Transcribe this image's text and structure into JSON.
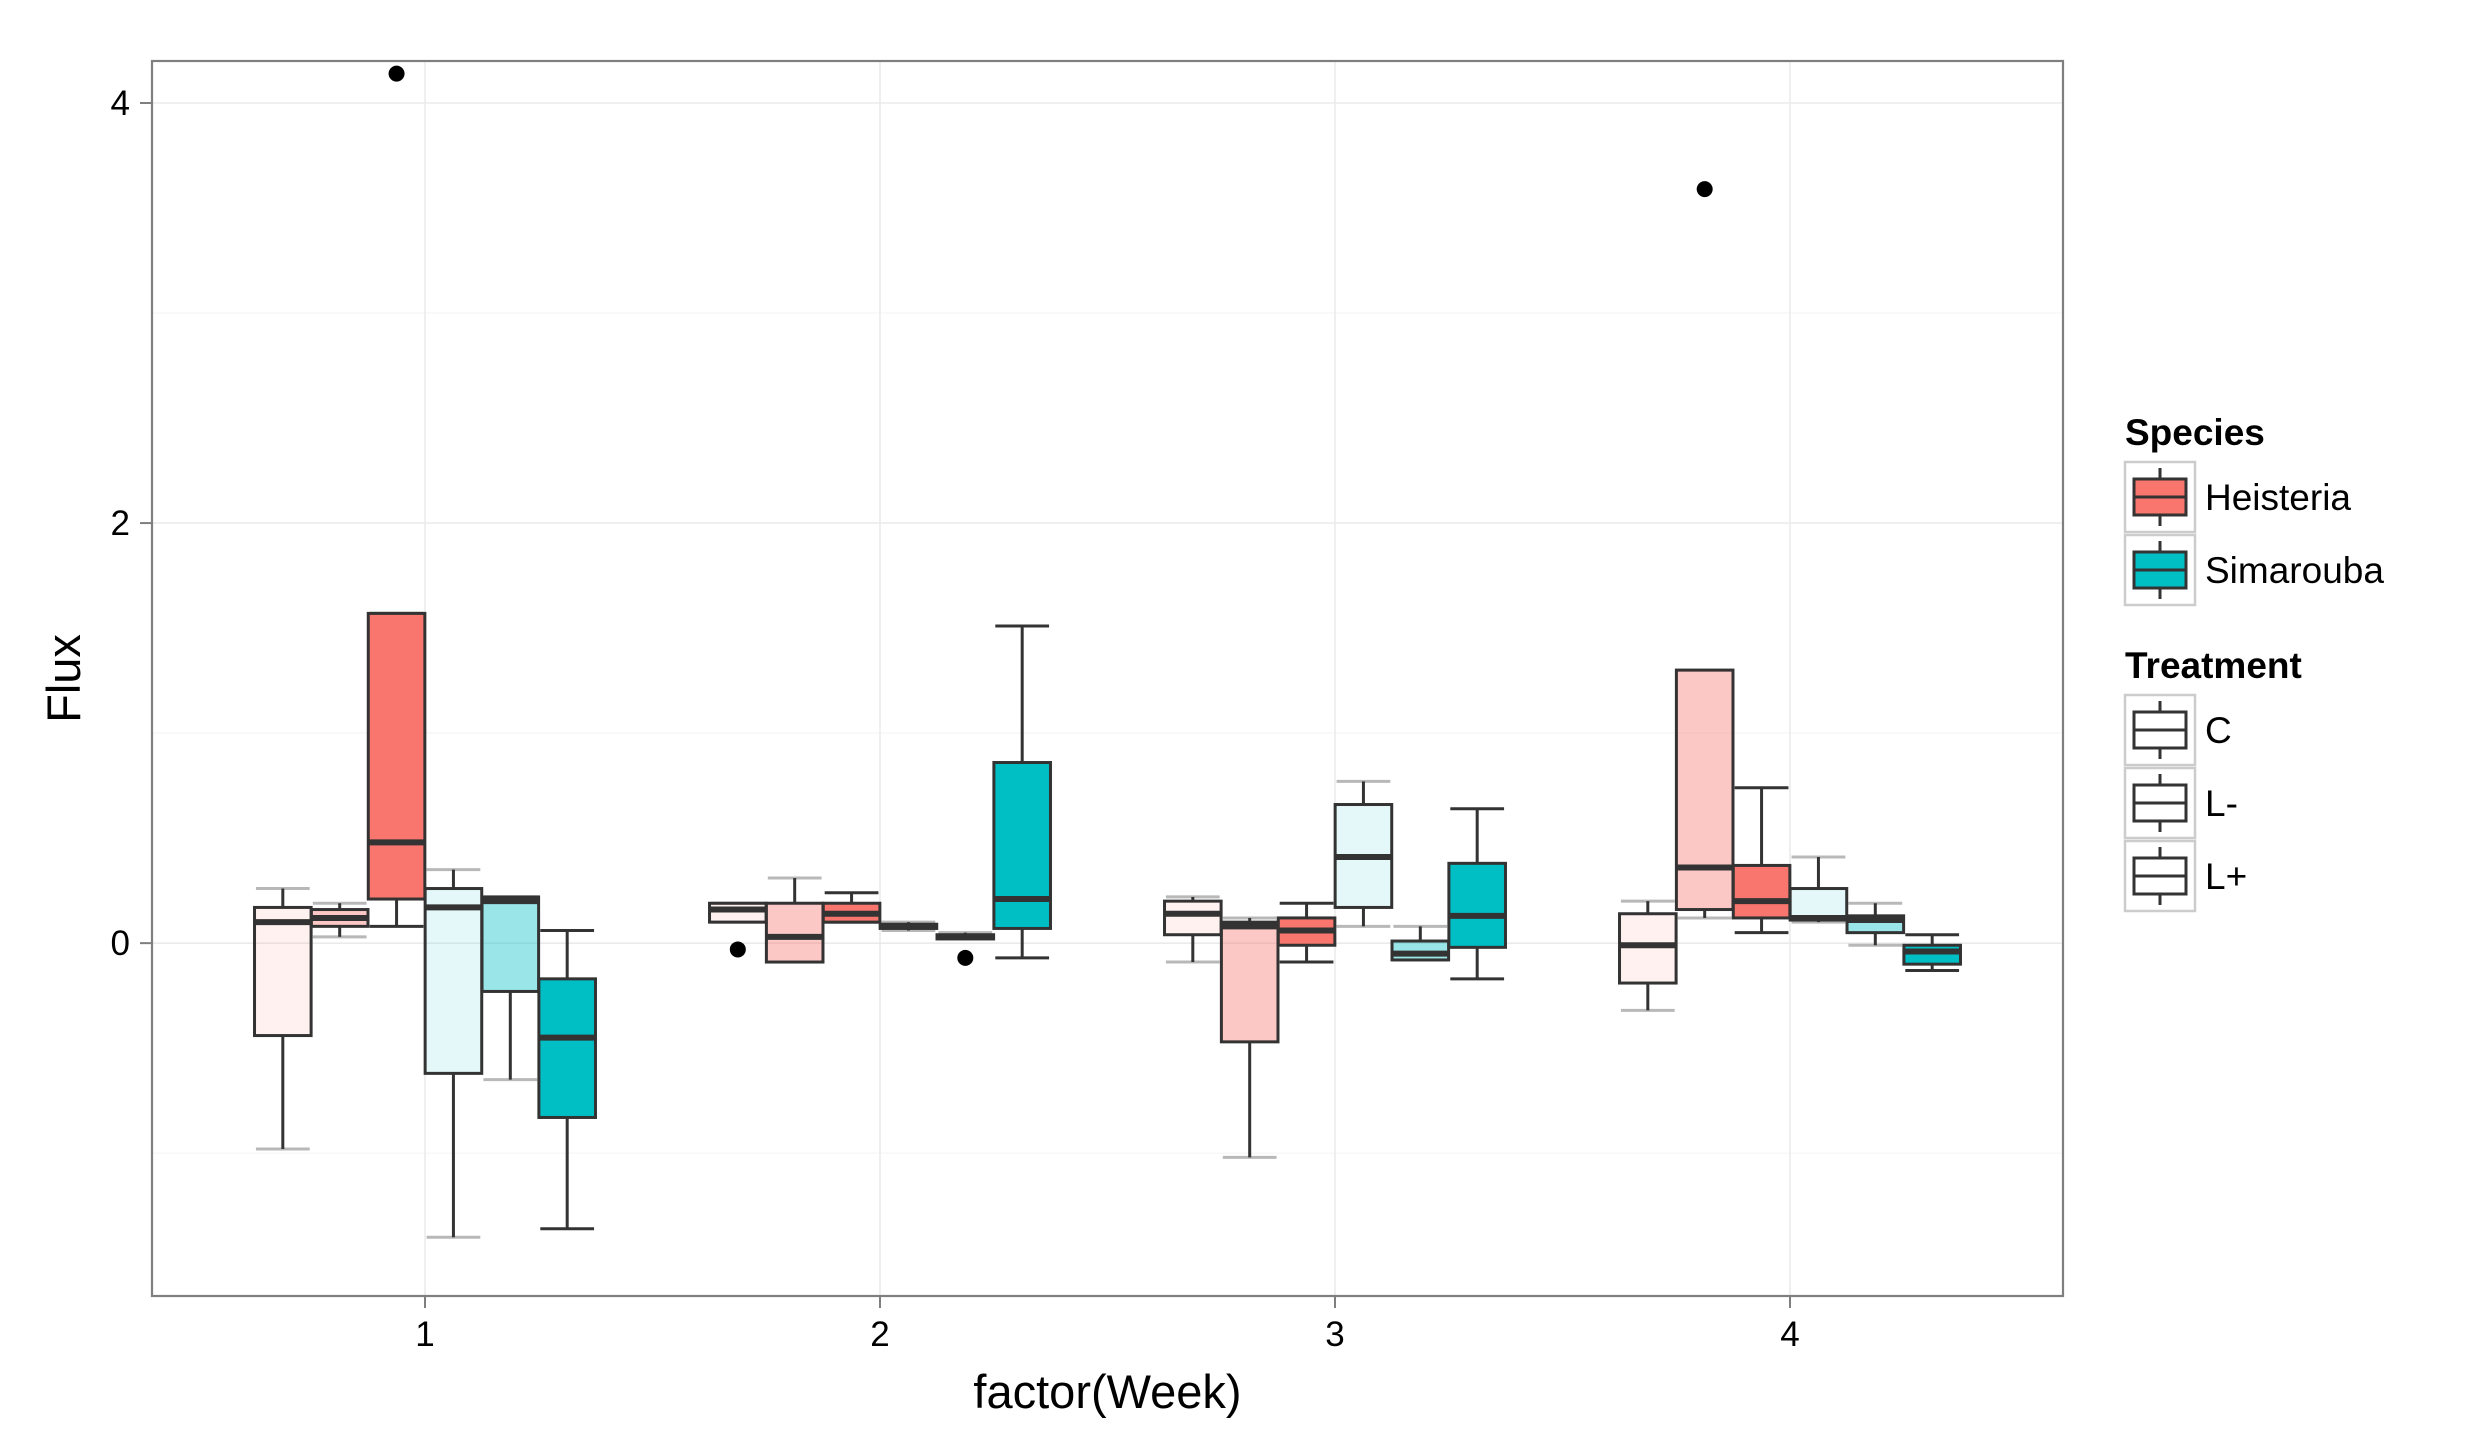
{
  "chart_data": {
    "type": "boxplot",
    "xlabel": "factor(Week)",
    "ylabel": "Flux",
    "categories": [
      "1",
      "2",
      "3",
      "4"
    ],
    "ylim": [
      -1.68,
      4.2
    ],
    "yticks": [
      0,
      2,
      4
    ],
    "grid": true,
    "legend_position": "right",
    "legends": [
      {
        "title": "Species",
        "entries": [
          {
            "label": "Heisteria",
            "color": "#F8766D"
          },
          {
            "label": "Simarouba",
            "color": "#00BFC4"
          }
        ]
      },
      {
        "title": "Treatment",
        "entries": [
          {
            "label": "C",
            "alpha": 0.1
          },
          {
            "label": "L-",
            "alpha": 0.4
          },
          {
            "label": "L+",
            "alpha": 1.0
          }
        ]
      }
    ],
    "boxes": [
      {
        "week": "1",
        "species": "Heisteria",
        "treatment": "C",
        "whisker_low": -0.98,
        "q1": -0.44,
        "median": 0.1,
        "q3": 0.17,
        "whisker_high": 0.26,
        "outliers": []
      },
      {
        "week": "1",
        "species": "Heisteria",
        "treatment": "L-",
        "whisker_low": 0.03,
        "q1": 0.08,
        "median": 0.12,
        "q3": 0.16,
        "whisker_high": 0.19,
        "outliers": []
      },
      {
        "week": "1",
        "species": "Heisteria",
        "treatment": "L+",
        "whisker_low": 0.08,
        "q1": 0.21,
        "median": 0.48,
        "q3": 1.57,
        "whisker_high": 1.57,
        "outliers": [
          4.14
        ]
      },
      {
        "week": "1",
        "species": "Simarouba",
        "treatment": "C",
        "whisker_low": -1.4,
        "q1": -0.62,
        "median": 0.17,
        "q3": 0.26,
        "whisker_high": 0.35,
        "outliers": []
      },
      {
        "week": "1",
        "species": "Simarouba",
        "treatment": "L-",
        "whisker_low": -0.65,
        "q1": -0.23,
        "median": 0.2,
        "q3": 0.22,
        "whisker_high": 0.22,
        "outliers": []
      },
      {
        "week": "1",
        "species": "Simarouba",
        "treatment": "L+",
        "whisker_low": -1.36,
        "q1": -0.83,
        "median": -0.45,
        "q3": -0.17,
        "whisker_high": 0.06,
        "outliers": []
      },
      {
        "week": "2",
        "species": "Heisteria",
        "treatment": "C",
        "whisker_low": 0.1,
        "q1": 0.1,
        "median": 0.16,
        "q3": 0.19,
        "whisker_high": 0.19,
        "outliers": [
          -0.03
        ]
      },
      {
        "week": "2",
        "species": "Heisteria",
        "treatment": "L-",
        "whisker_low": -0.09,
        "q1": -0.09,
        "median": 0.03,
        "q3": 0.19,
        "whisker_high": 0.31,
        "outliers": []
      },
      {
        "week": "2",
        "species": "Heisteria",
        "treatment": "L+",
        "whisker_low": 0.1,
        "q1": 0.1,
        "median": 0.14,
        "q3": 0.19,
        "whisker_high": 0.24,
        "outliers": []
      },
      {
        "week": "2",
        "species": "Simarouba",
        "treatment": "C",
        "whisker_low": 0.06,
        "q1": 0.07,
        "median": 0.08,
        "q3": 0.09,
        "whisker_high": 0.1,
        "outliers": []
      },
      {
        "week": "2",
        "species": "Simarouba",
        "treatment": "L-",
        "whisker_low": 0.02,
        "q1": 0.02,
        "median": 0.03,
        "q3": 0.04,
        "whisker_high": 0.05,
        "outliers": [
          -0.07
        ]
      },
      {
        "week": "2",
        "species": "Simarouba",
        "treatment": "L+",
        "whisker_low": -0.07,
        "q1": 0.07,
        "median": 0.21,
        "q3": 0.86,
        "whisker_high": 1.51,
        "outliers": []
      },
      {
        "week": "3",
        "species": "Heisteria",
        "treatment": "C",
        "whisker_low": -0.09,
        "q1": 0.04,
        "median": 0.14,
        "q3": 0.2,
        "whisker_high": 0.22,
        "outliers": []
      },
      {
        "week": "3",
        "species": "Heisteria",
        "treatment": "L-",
        "whisker_low": -1.02,
        "q1": -0.47,
        "median": 0.08,
        "q3": 0.1,
        "whisker_high": 0.12,
        "outliers": []
      },
      {
        "week": "3",
        "species": "Heisteria",
        "treatment": "L+",
        "whisker_low": -0.09,
        "q1": -0.01,
        "median": 0.06,
        "q3": 0.12,
        "whisker_high": 0.19,
        "outliers": []
      },
      {
        "week": "3",
        "species": "Simarouba",
        "treatment": "C",
        "whisker_low": 0.08,
        "q1": 0.17,
        "median": 0.41,
        "q3": 0.66,
        "whisker_high": 0.77,
        "outliers": []
      },
      {
        "week": "3",
        "species": "Simarouba",
        "treatment": "L-",
        "whisker_low": -0.08,
        "q1": -0.08,
        "median": -0.05,
        "q3": 0.01,
        "whisker_high": 0.08,
        "outliers": []
      },
      {
        "week": "3",
        "species": "Simarouba",
        "treatment": "L+",
        "whisker_low": -0.17,
        "q1": -0.02,
        "median": 0.13,
        "q3": 0.38,
        "whisker_high": 0.64,
        "outliers": []
      },
      {
        "week": "4",
        "species": "Heisteria",
        "treatment": "C",
        "whisker_low": -0.32,
        "q1": -0.19,
        "median": -0.01,
        "q3": 0.14,
        "whisker_high": 0.2,
        "outliers": []
      },
      {
        "week": "4",
        "species": "Heisteria",
        "treatment": "L-",
        "whisker_low": 0.12,
        "q1": 0.16,
        "median": 0.36,
        "q3": 1.3,
        "whisker_high": 1.3,
        "outliers": [
          3.59
        ]
      },
      {
        "week": "4",
        "species": "Heisteria",
        "treatment": "L+",
        "whisker_low": 0.05,
        "q1": 0.12,
        "median": 0.2,
        "q3": 0.37,
        "whisker_high": 0.74,
        "outliers": []
      },
      {
        "week": "4",
        "species": "Simarouba",
        "treatment": "C",
        "whisker_low": 0.1,
        "q1": 0.11,
        "median": 0.12,
        "q3": 0.26,
        "whisker_high": 0.41,
        "outliers": []
      },
      {
        "week": "4",
        "species": "Simarouba",
        "treatment": "L-",
        "whisker_low": -0.01,
        "q1": 0.05,
        "median": 0.11,
        "q3": 0.13,
        "whisker_high": 0.19,
        "outliers": []
      },
      {
        "week": "4",
        "species": "Simarouba",
        "treatment": "L+",
        "whisker_low": -0.13,
        "q1": -0.1,
        "median": -0.04,
        "q3": -0.01,
        "whisker_high": 0.04,
        "outliers": []
      }
    ]
  }
}
